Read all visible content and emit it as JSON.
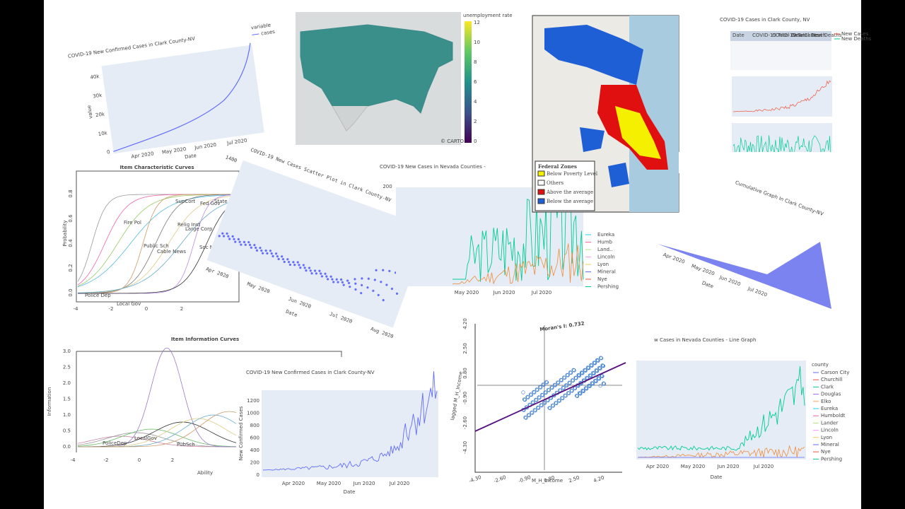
{
  "panels": {
    "clark_area": {
      "title": "COVID-19 New Confirmed Cases in Clark County-NV",
      "y_label": "value",
      "x_label": "Date",
      "yticks": [
        "0",
        "10k",
        "20k",
        "30k",
        "40k"
      ],
      "xticks": [
        "Apr 2020",
        "May 2020",
        "Jun 2020",
        "Jul 2020"
      ],
      "legend_title": "variable",
      "legend": [
        "cases"
      ]
    },
    "us_map": {
      "colorbar_title": "unemployment rate",
      "colorbar_ticks": [
        "12",
        "10",
        "8",
        "6",
        "4",
        "2",
        "0"
      ],
      "credit": "© CARTO"
    },
    "chicago_map": {
      "legend_title": "Federal Zones",
      "legend": [
        "Below Poverty Level",
        "Others",
        "Above the average",
        "Below the average"
      ]
    },
    "clark_table": {
      "title": "COVID-19 Cases in Clark County, NV",
      "columns": [
        "Date",
        "COVID-19 Total Cases",
        "COVID-19 Total Death",
        "New Cases",
        "New Deaths"
      ],
      "legend": [
        "New Cases",
        "New Deaths"
      ]
    },
    "icc": {
      "title": "Item Characteristic Curves",
      "y_label": "Probability",
      "yticks": [
        "0.0",
        "0.2",
        "0.4",
        "0.6",
        "0.8"
      ],
      "xticks": [
        "-4",
        "-2",
        "0",
        "2"
      ],
      "labels": [
        "SupCort",
        "Fed Gov",
        "State Gov",
        "Fire Pol",
        "Relig Inst",
        "Large Corp",
        "Public Sch",
        "Cable News",
        "Soc Media",
        "Police Dep",
        "Local Gov"
      ]
    },
    "scatter": {
      "title": "COVID-19 New Cases Scatter Plot in Clark County-NV",
      "yticks": [
        "1400"
      ],
      "xticks": [
        "Apr 2020",
        "May 2020",
        "Jun 2020",
        "Jul 2020",
        "Aug 2020"
      ],
      "x_label": "Date"
    },
    "nevada_top": {
      "title": "COVID-19 New Cases in Nevada Counties -",
      "yticks": [
        "200"
      ],
      "xticks": [
        "May 2020",
        "Jun 2020",
        "Jul 2020"
      ],
      "legend": [
        "Eureka",
        "Humb",
        "Land..",
        "Lincoln",
        "Lyon",
        "Mineral",
        "Nye",
        "Pershing"
      ]
    },
    "cumulative": {
      "title": "Cumulative Graph In Clark County-NV",
      "xticks": [
        "Apr 2020",
        "May 2020",
        "Jun 2020",
        "Jul 2020"
      ],
      "x_label": "Date"
    },
    "iic": {
      "title": "Item Information Curves",
      "y_label": "Information",
      "yticks": [
        "3.0",
        "2.5",
        "2.0",
        "1.5",
        "1.0",
        "0.5",
        "0.0"
      ],
      "xticks": [
        "-4",
        "-2",
        "0",
        "2"
      ],
      "x_label": "Ability",
      "labels": [
        "PoliceDep",
        "LocalGov",
        "PubSch"
      ]
    },
    "clark_line": {
      "title": "COVID-19 New Confirmed Cases in Clark County-NV",
      "y_label": "New Confirmed Cases",
      "yticks": [
        "1200",
        "1000",
        "800",
        "600",
        "400",
        "200",
        "0"
      ],
      "xticks": [
        "Apr 2020",
        "May 2020",
        "Jun 2020",
        "Jul 2020"
      ],
      "x_label": "Date"
    },
    "moran": {
      "title": "Moran's I: 0.732",
      "y_label": "lagged M_H_Income",
      "x_label": "M_H_Income",
      "yticks": [
        "4.20",
        "2.50",
        "0.80",
        "-0.90",
        "-2.60",
        "-4.30"
      ],
      "xticks": [
        "-4.30",
        "-2.60",
        "-0.90",
        "0.80",
        "2.50",
        "4.20"
      ]
    },
    "nevada_line": {
      "title": "w Cases in Nevada Counties - Line Graph",
      "legend_title": "county",
      "legend": [
        "Carson City",
        "Churchill",
        "Clark",
        "Douglas",
        "Elko",
        "Eureka",
        "Humboldt",
        "Lander",
        "Lincoln",
        "Lyon",
        "Mineral",
        "Nye",
        "Pershing"
      ],
      "xticks": [
        "Apr 2020",
        "May 2020",
        "Jun 2020",
        "Jul 2020"
      ],
      "x_label": "Date"
    }
  }
}
